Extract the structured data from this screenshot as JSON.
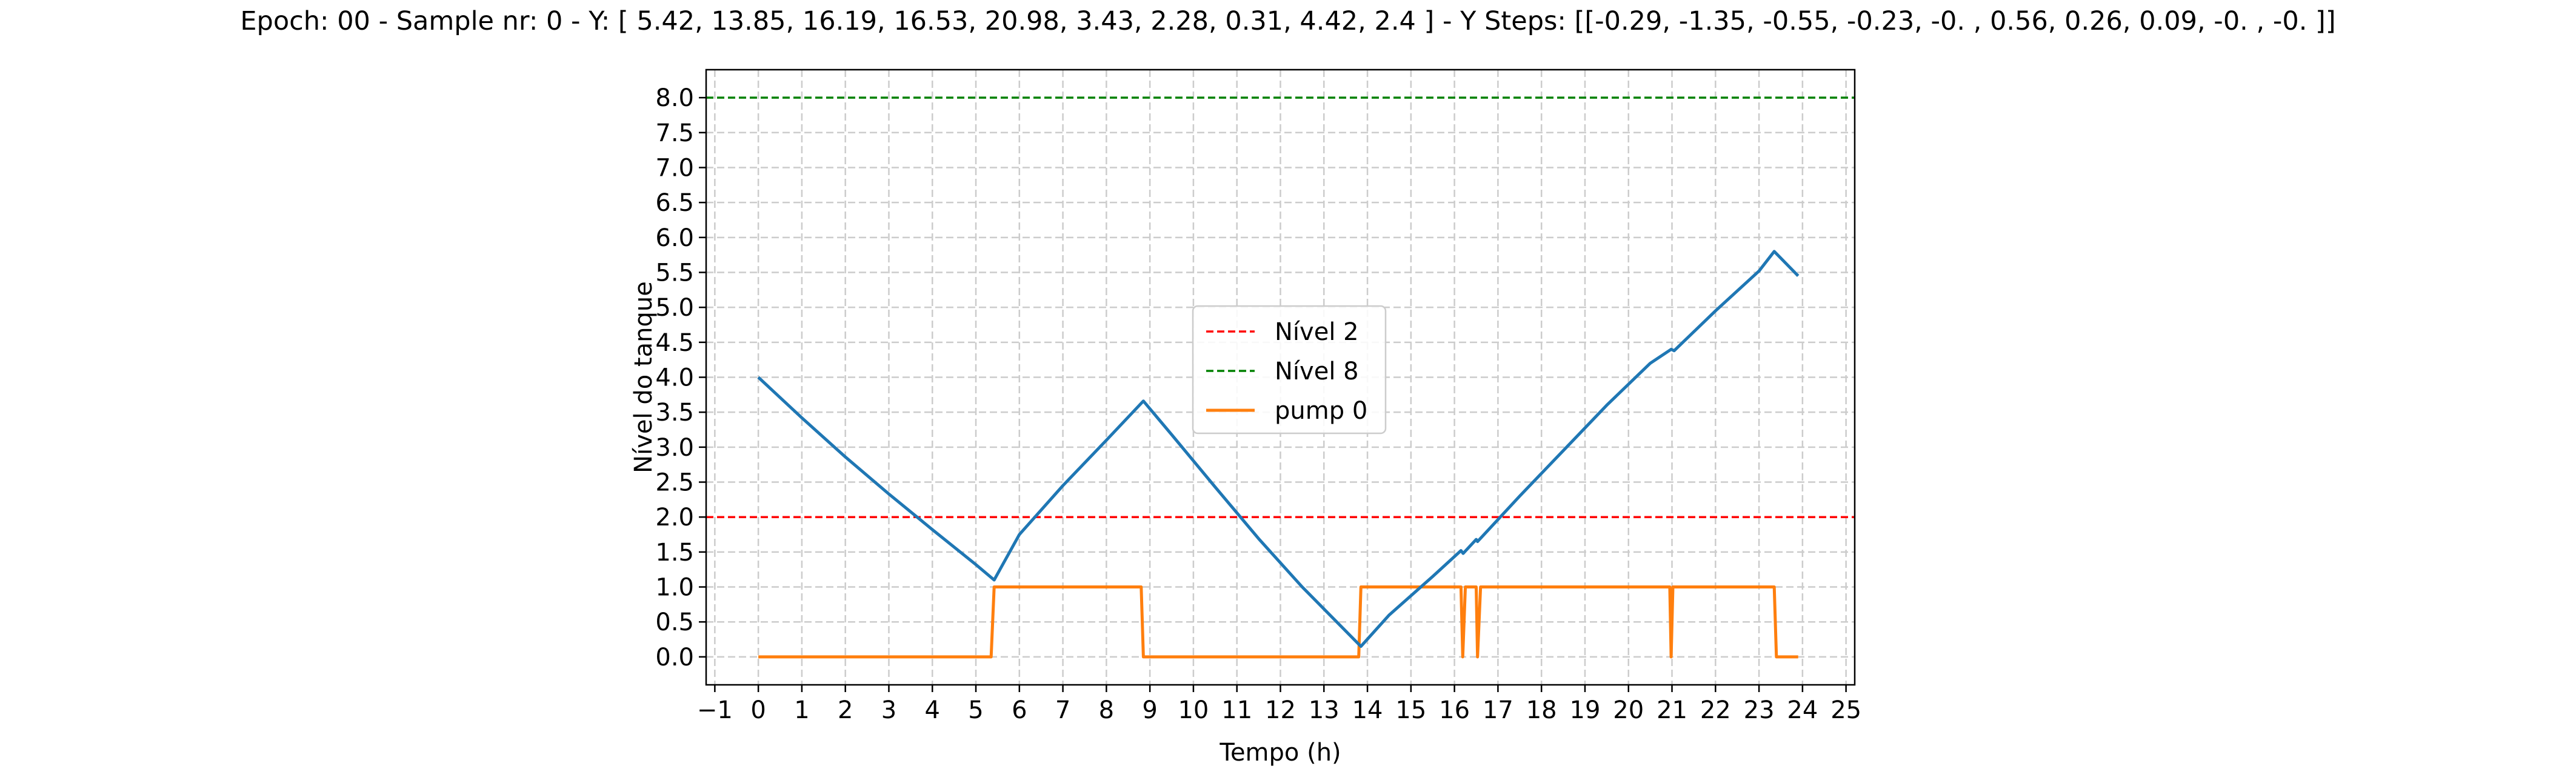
{
  "chart_data": {
    "type": "line",
    "title": "Epoch: 00 - Sample nr: 0 - Y: [ 5.42, 13.85, 16.19, 16.53, 20.98,  3.43,  2.28,  0.31,  4.42,  2.4 ] - Y Steps: [[-0.29, -1.35, -0.55, -0.23, -0.  ,  0.56,  0.26,  0.09, -0.  , -0.  ]]",
    "xlabel": "Tempo (h)",
    "ylabel": "Nível do tanque",
    "xlim": [
      -1.2,
      25.2
    ],
    "ylim": [
      -0.4,
      8.4
    ],
    "xticks": [
      "−1",
      "0",
      "1",
      "2",
      "3",
      "4",
      "5",
      "6",
      "7",
      "8",
      "9",
      "10",
      "11",
      "12",
      "13",
      "14",
      "15",
      "16",
      "17",
      "18",
      "19",
      "20",
      "21",
      "22",
      "23",
      "24",
      "25"
    ],
    "yticks": [
      "0.0",
      "0.5",
      "1.0",
      "1.5",
      "2.0",
      "2.5",
      "3.0",
      "3.5",
      "4.0",
      "4.5",
      "5.0",
      "5.5",
      "6.0",
      "6.5",
      "7.0",
      "7.5",
      "8.0"
    ],
    "grid": true,
    "legend_position": "center",
    "series": [
      {
        "name": "Nível 2",
        "color": "#ff0000",
        "style": "dashed",
        "points": [
          [
            -1.2,
            2.0
          ],
          [
            25.2,
            2.0
          ]
        ]
      },
      {
        "name": "Nível 8",
        "color": "#008000",
        "style": "dashed",
        "points": [
          [
            -1.2,
            8.0
          ],
          [
            25.2,
            8.0
          ]
        ]
      },
      {
        "name": "pump 0",
        "color": "#ff7f0e",
        "style": "solid",
        "points": [
          [
            0,
            0
          ],
          [
            5.35,
            0
          ],
          [
            5.42,
            1
          ],
          [
            8.8,
            1
          ],
          [
            8.85,
            0
          ],
          [
            13.8,
            0
          ],
          [
            13.85,
            1
          ],
          [
            16.15,
            1
          ],
          [
            16.19,
            0
          ],
          [
            16.25,
            1
          ],
          [
            16.5,
            1
          ],
          [
            16.53,
            0
          ],
          [
            16.6,
            1
          ],
          [
            20.95,
            1
          ],
          [
            20.98,
            0
          ],
          [
            21.02,
            1
          ],
          [
            23.35,
            1
          ],
          [
            23.4,
            0
          ],
          [
            23.9,
            0
          ]
        ]
      },
      {
        "name": "",
        "color": "#1f77b4",
        "style": "solid",
        "points": [
          [
            0,
            4.0
          ],
          [
            1,
            3.42
          ],
          [
            2,
            2.86
          ],
          [
            3,
            2.33
          ],
          [
            4,
            1.82
          ],
          [
            5,
            1.32
          ],
          [
            5.42,
            1.1
          ],
          [
            6,
            1.75
          ],
          [
            7,
            2.45
          ],
          [
            8,
            3.1
          ],
          [
            8.85,
            3.66
          ],
          [
            9.5,
            3.18
          ],
          [
            10.5,
            2.43
          ],
          [
            11.5,
            1.69
          ],
          [
            12.5,
            1.0
          ],
          [
            13.85,
            0.15
          ],
          [
            14.5,
            0.6
          ],
          [
            15.5,
            1.15
          ],
          [
            16.15,
            1.52
          ],
          [
            16.2,
            1.48
          ],
          [
            16.5,
            1.68
          ],
          [
            16.53,
            1.65
          ],
          [
            17.5,
            2.3
          ],
          [
            18.5,
            2.95
          ],
          [
            19.5,
            3.6
          ],
          [
            20.5,
            4.2
          ],
          [
            20.98,
            4.4
          ],
          [
            21.05,
            4.38
          ],
          [
            22,
            4.95
          ],
          [
            23,
            5.52
          ],
          [
            23.35,
            5.8
          ],
          [
            23.9,
            5.45
          ]
        ]
      }
    ]
  }
}
